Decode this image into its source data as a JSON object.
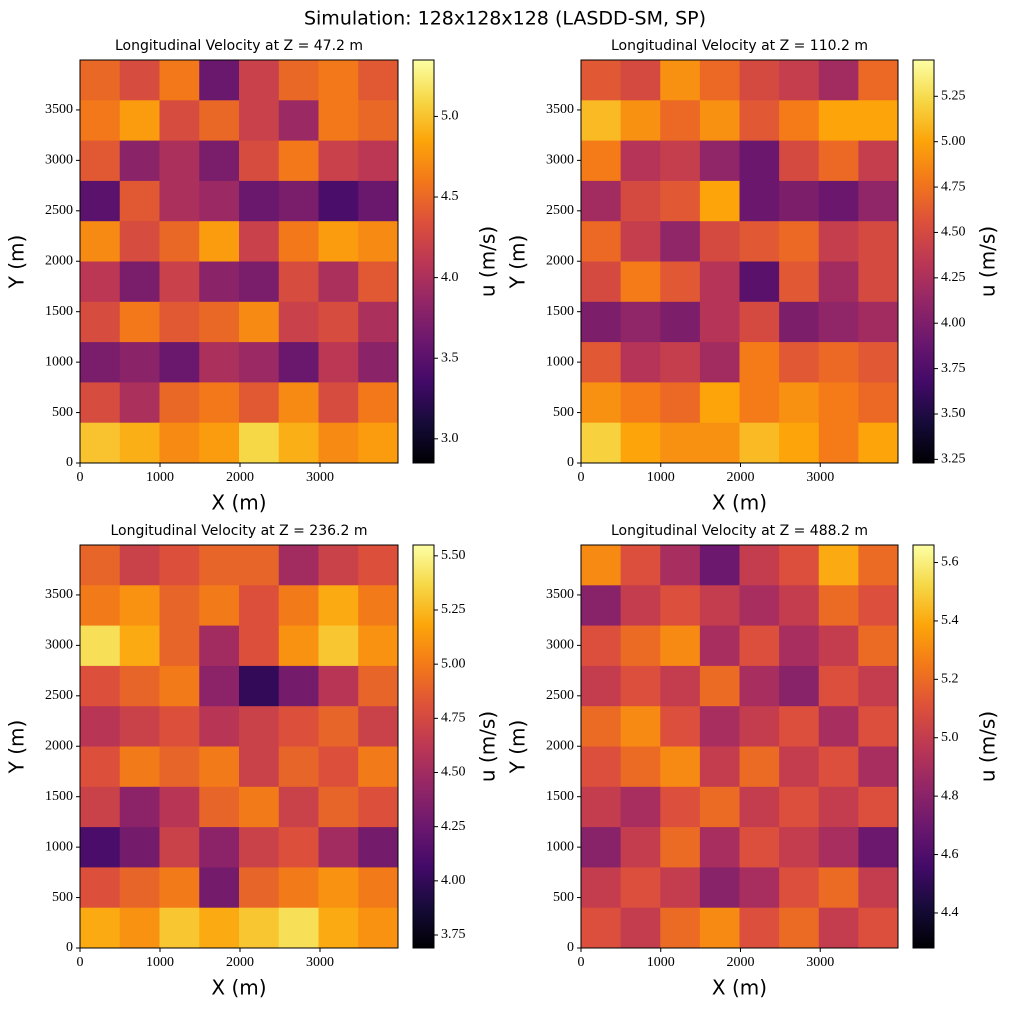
{
  "title": "Simulation: 128x128x128 (LASDD-SM, SP)",
  "chart_data": [
    {
      "type": "heatmap",
      "title": "Longitudinal Velocity at Z = 47.2 m",
      "xlabel": "X (m)",
      "ylabel": "Y (m)",
      "colorbar_label": "u (m/s)",
      "colormap": "inferno",
      "xlim": [
        0,
        3975
      ],
      "ylim": [
        0,
        3995
      ],
      "xticks": [
        0,
        1000,
        2000,
        3000
      ],
      "yticks": [
        0,
        500,
        1000,
        1500,
        2000,
        2500,
        3000,
        3500
      ],
      "clim": [
        2.85,
        5.35
      ],
      "cticks": [
        {
          "value": 3,
          "label": "3.0"
        },
        3.5,
        {
          "value": 4,
          "label": "4.0"
        },
        4.5,
        {
          "value": 5,
          "label": "5.0"
        }
      ],
      "z": [
        [
          4.5,
          4.3,
          4.6,
          3.6,
          4.2,
          4.5,
          4.6,
          4.4
        ],
        [
          4.6,
          4.8,
          4.3,
          4.5,
          4.2,
          3.9,
          4.6,
          4.5
        ],
        [
          4.4,
          3.8,
          4.0,
          3.7,
          4.3,
          4.6,
          4.2,
          4.1
        ],
        [
          3.5,
          4.4,
          4.0,
          3.9,
          3.6,
          3.7,
          3.4,
          3.6
        ],
        [
          4.7,
          4.3,
          4.5,
          4.8,
          4.2,
          4.6,
          4.8,
          4.7
        ],
        [
          4.1,
          3.7,
          4.2,
          3.8,
          3.7,
          4.3,
          4.0,
          4.4
        ],
        [
          4.3,
          4.6,
          4.4,
          4.5,
          4.7,
          4.2,
          4.3,
          4.0
        ],
        [
          3.7,
          3.8,
          3.6,
          4.0,
          3.9,
          3.6,
          4.1,
          3.8
        ],
        [
          4.3,
          4.0,
          4.5,
          4.6,
          4.4,
          4.7,
          4.3,
          4.6
        ],
        [
          5.0,
          4.9,
          4.7,
          4.8,
          5.1,
          4.9,
          4.7,
          4.8
        ]
      ]
    },
    {
      "type": "heatmap",
      "title": "Longitudinal Velocity at Z = 110.2 m",
      "xlabel": "X (m)",
      "ylabel": "Y (m)",
      "colorbar_label": "u (m/s)",
      "colormap": "inferno",
      "xlim": [
        0,
        3975
      ],
      "ylim": [
        0,
        3995
      ],
      "xticks": [
        0,
        1000,
        2000,
        3000
      ],
      "yticks": [
        0,
        500,
        1000,
        1500,
        2000,
        2500,
        3000,
        3500
      ],
      "clim": [
        3.23,
        5.45
      ],
      "cticks": [
        3.25,
        {
          "value": 3.5,
          "label": "3.50"
        },
        3.75,
        {
          "value": 4,
          "label": "4.00"
        },
        4.25,
        {
          "value": 4.5,
          "label": "4.50"
        },
        4.75,
        {
          "value": 5,
          "label": "5.00"
        },
        5.25
      ],
      "z": [
        [
          4.6,
          4.5,
          4.9,
          4.7,
          4.5,
          4.4,
          4.2,
          4.7
        ],
        [
          5.1,
          4.9,
          4.7,
          4.9,
          4.6,
          4.8,
          5.0,
          5.0
        ],
        [
          4.8,
          4.3,
          4.4,
          4.1,
          3.9,
          4.5,
          4.7,
          4.4
        ],
        [
          4.2,
          4.5,
          4.6,
          5.0,
          3.9,
          4.0,
          3.9,
          4.1
        ],
        [
          4.7,
          4.4,
          4.1,
          4.5,
          4.6,
          4.7,
          4.4,
          4.5
        ],
        [
          4.5,
          4.8,
          4.6,
          4.3,
          3.8,
          4.6,
          4.2,
          4.5
        ],
        [
          4.0,
          4.1,
          4.0,
          4.3,
          4.5,
          4.0,
          4.1,
          4.2
        ],
        [
          4.6,
          4.3,
          4.4,
          4.2,
          4.8,
          4.6,
          4.7,
          4.6
        ],
        [
          4.9,
          4.8,
          4.7,
          5.0,
          4.8,
          4.9,
          4.8,
          4.7
        ],
        [
          5.2,
          5.0,
          4.9,
          4.9,
          5.1,
          5.0,
          4.8,
          5.0
        ]
      ]
    },
    {
      "type": "heatmap",
      "title": "Longitudinal Velocity at Z = 236.2 m",
      "xlabel": "X (m)",
      "ylabel": "Y (m)",
      "colorbar_label": "u (m/s)",
      "colormap": "inferno",
      "xlim": [
        0,
        3975
      ],
      "ylim": [
        0,
        3995
      ],
      "xticks": [
        0,
        1000,
        2000,
        3000
      ],
      "yticks": [
        0,
        500,
        1000,
        1500,
        2000,
        2500,
        3000,
        3500
      ],
      "clim": [
        3.69,
        5.55
      ],
      "cticks": [
        3.75,
        {
          "value": 4,
          "label": "4.00"
        },
        4.25,
        {
          "value": 4.5,
          "label": "4.50"
        },
        4.75,
        {
          "value": 5,
          "label": "5.00"
        },
        5.25,
        {
          "value": 5.5,
          "label": "5.50"
        }
      ],
      "z": [
        [
          4.9,
          4.7,
          4.8,
          4.9,
          4.9,
          4.5,
          4.7,
          4.8
        ],
        [
          5.0,
          5.1,
          4.9,
          5.0,
          4.8,
          5.0,
          5.2,
          5.0
        ],
        [
          5.4,
          5.2,
          4.9,
          4.5,
          4.8,
          5.1,
          5.3,
          5.1
        ],
        [
          4.8,
          4.9,
          5.0,
          4.4,
          4.0,
          4.3,
          4.6,
          4.9
        ],
        [
          4.6,
          4.7,
          4.8,
          4.6,
          4.7,
          4.8,
          4.9,
          4.7
        ],
        [
          4.8,
          5.0,
          4.9,
          5.0,
          4.7,
          4.9,
          4.8,
          5.0
        ],
        [
          4.7,
          4.4,
          4.6,
          4.9,
          5.0,
          4.7,
          4.9,
          4.8
        ],
        [
          4.1,
          4.3,
          4.7,
          4.4,
          4.7,
          4.8,
          4.5,
          4.3
        ],
        [
          4.8,
          4.9,
          5.0,
          4.3,
          4.9,
          5.0,
          5.1,
          5.0
        ],
        [
          5.2,
          5.1,
          5.3,
          5.2,
          5.3,
          5.4,
          5.2,
          5.1
        ]
      ]
    },
    {
      "type": "heatmap",
      "title": "Longitudinal Velocity at Z = 488.2 m",
      "xlabel": "X (m)",
      "ylabel": "Y (m)",
      "colorbar_label": "u (m/s)",
      "colormap": "inferno",
      "xlim": [
        0,
        3975
      ],
      "ylim": [
        0,
        3995
      ],
      "xticks": [
        0,
        1000,
        2000,
        3000
      ],
      "yticks": [
        0,
        500,
        1000,
        1500,
        2000,
        2500,
        3000,
        3500
      ],
      "clim": [
        4.28,
        5.66
      ],
      "cticks": [
        4.4,
        4.6,
        4.8,
        {
          "value": 5,
          "label": "5.0"
        },
        5.2,
        5.4,
        5.6
      ],
      "z": [
        [
          5.3,
          5.1,
          4.9,
          4.7,
          5.0,
          5.1,
          5.4,
          5.2
        ],
        [
          4.8,
          5.0,
          5.1,
          5.0,
          4.9,
          5.0,
          5.2,
          5.1
        ],
        [
          5.1,
          5.2,
          5.3,
          4.9,
          5.1,
          4.9,
          5.0,
          5.2
        ],
        [
          5.0,
          5.1,
          5.0,
          5.2,
          4.9,
          4.8,
          5.1,
          5.0
        ],
        [
          5.2,
          5.3,
          5.1,
          4.9,
          5.0,
          5.1,
          4.9,
          5.1
        ],
        [
          5.1,
          5.2,
          5.3,
          5.0,
          5.2,
          5.0,
          5.1,
          4.9
        ],
        [
          5.0,
          4.9,
          5.1,
          5.2,
          5.0,
          5.1,
          5.0,
          5.1
        ],
        [
          4.8,
          5.0,
          5.2,
          4.9,
          5.1,
          5.0,
          4.9,
          4.7
        ],
        [
          5.0,
          5.1,
          5.0,
          4.8,
          4.9,
          5.1,
          5.2,
          5.0
        ],
        [
          5.1,
          5.0,
          5.2,
          5.3,
          5.1,
          5.2,
          5.0,
          5.1
        ]
      ]
    }
  ]
}
